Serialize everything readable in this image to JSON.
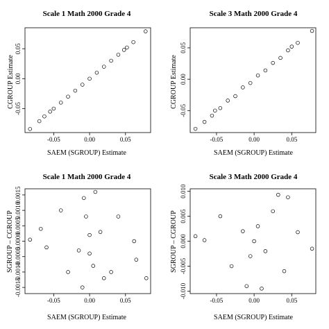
{
  "chart_data": [
    {
      "type": "scatter",
      "title": "Scale 1 Math 2000 Grade 4",
      "xlabel": "SAEM (SGROUP) Estimate",
      "ylabel": "CGROUP Estimate",
      "xlim": [
        -0.09,
        0.085
      ],
      "ylim": [
        -0.09,
        0.085
      ],
      "xticks": [
        -0.05,
        0.0,
        0.05
      ],
      "xtick_labels": [
        "-0.05",
        "0.00",
        "0.05"
      ],
      "yticks": [
        -0.05,
        0.0,
        0.05
      ],
      "ytick_labels": [
        "-0.05",
        "0.00",
        "0.05"
      ],
      "points": [
        [
          -0.083,
          -0.084
        ],
        [
          -0.07,
          -0.071
        ],
        [
          -0.063,
          -0.063
        ],
        [
          -0.055,
          -0.055
        ],
        [
          0.052,
          0.052
        ],
        [
          0.061,
          0.061
        ],
        [
          0.078,
          0.079
        ],
        [
          -0.05,
          -0.05
        ],
        [
          -0.04,
          -0.04
        ],
        [
          -0.03,
          -0.03
        ],
        [
          -0.02,
          -0.02
        ],
        [
          -0.01,
          -0.01
        ],
        [
          0.0,
          0.0
        ],
        [
          0.01,
          0.01
        ],
        [
          0.02,
          0.02
        ],
        [
          0.03,
          0.03
        ],
        [
          0.04,
          0.04
        ],
        [
          0.048,
          0.048
        ]
      ],
      "grid": false,
      "legend": "none"
    },
    {
      "type": "scatter",
      "title": "Scale 3 Math 2000 Grade 4",
      "xlabel": "SAEM (SGROUP) Estimate",
      "ylabel": "CGROUP Estimate",
      "xlim": [
        -0.085,
        0.082
      ],
      "ylim": [
        -0.085,
        0.082
      ],
      "xticks": [
        -0.05,
        0.0,
        0.05
      ],
      "xtick_labels": [
        "-0.05",
        "0.00",
        "0.05"
      ],
      "yticks": [
        -0.05,
        0.0,
        0.05
      ],
      "ytick_labels": [
        "-0.05",
        "0.00",
        "0.05"
      ],
      "points": [
        [
          -0.078,
          -0.079
        ],
        [
          -0.066,
          -0.068
        ],
        [
          -0.056,
          -0.058
        ],
        [
          -0.052,
          -0.05
        ],
        [
          0.058,
          0.058
        ],
        [
          0.077,
          0.077
        ],
        [
          -0.045,
          -0.046
        ],
        [
          -0.035,
          -0.034
        ],
        [
          -0.025,
          -0.027
        ],
        [
          -0.015,
          -0.013
        ],
        [
          -0.005,
          -0.006
        ],
        [
          0.005,
          0.006
        ],
        [
          0.015,
          0.014
        ],
        [
          0.025,
          0.026
        ],
        [
          0.035,
          0.034
        ],
        [
          0.045,
          0.046
        ],
        [
          0.05,
          0.052
        ]
      ],
      "grid": false,
      "legend": "none"
    },
    {
      "type": "scatter",
      "title": "Scale 1 Math 2000 Grade 4",
      "xlabel": "SAEM (SGROUP) Estimate",
      "ylabel": "SGROUP – CGROUP",
      "xlim": [
        -0.09,
        0.085
      ],
      "ylim": [
        -0.0017,
        0.0017
      ],
      "xticks": [
        -0.05,
        0.0,
        0.05
      ],
      "xtick_labels": [
        "-0.05",
        "0.00",
        "0.05"
      ],
      "yticks": [
        -0.0015,
        -0.001,
        -0.0005,
        0.0,
        0.0005,
        0.001,
        0.0015
      ],
      "ytick_labels": [
        "-0.0015",
        "-0.0010",
        "-0.0005",
        "0.0000",
        "0.0005",
        "0.0010",
        "0.0015"
      ],
      "points": [
        [
          -0.083,
          5e-05
        ],
        [
          -0.068,
          0.0004
        ],
        [
          -0.06,
          -0.0002
        ],
        [
          0.008,
          0.0016
        ],
        [
          -0.008,
          0.0014
        ],
        [
          0.062,
          0.0
        ],
        [
          0.065,
          -0.0006
        ],
        [
          0.079,
          -0.0012
        ],
        [
          -0.01,
          -0.0015
        ],
        [
          0.02,
          -0.0012
        ],
        [
          -0.04,
          0.001
        ],
        [
          0.04,
          0.0008
        ],
        [
          -0.03,
          -0.001
        ],
        [
          0.03,
          -0.001
        ],
        [
          0.0,
          -0.0004
        ],
        [
          0.0,
          0.0002
        ],
        [
          -0.015,
          -0.0003
        ],
        [
          0.015,
          0.0003
        ],
        [
          -0.005,
          0.0008
        ],
        [
          0.005,
          -0.0008
        ]
      ],
      "grid": false,
      "legend": "none"
    },
    {
      "type": "scatter",
      "title": "Scale 3 Math 2000 Grade 4",
      "xlabel": "SAEM (SGROUP) Estimate",
      "ylabel": "SGROUP – CGROUP",
      "xlim": [
        -0.085,
        0.082
      ],
      "ylim": [
        -0.0105,
        0.0105
      ],
      "xticks": [
        -0.05,
        0.0,
        0.05
      ],
      "xtick_labels": [
        "-0.05",
        "0.00",
        "0.05"
      ],
      "yticks": [
        -0.01,
        -0.005,
        0.0,
        0.005,
        0.01
      ],
      "ytick_labels": [
        "-0.010",
        "-0.005",
        "0.000",
        "0.005",
        "0.010"
      ],
      "points": [
        [
          -0.078,
          0.001
        ],
        [
          -0.066,
          0.0002
        ],
        [
          0.077,
          -0.0015
        ],
        [
          0.058,
          0.0018
        ],
        [
          0.045,
          0.0088
        ],
        [
          0.032,
          0.0093
        ],
        [
          -0.01,
          -0.009
        ],
        [
          0.01,
          -0.0095
        ],
        [
          -0.045,
          0.005
        ],
        [
          0.04,
          -0.006
        ],
        [
          -0.03,
          -0.005
        ],
        [
          0.025,
          0.006
        ],
        [
          0.0,
          0.0
        ],
        [
          -0.015,
          0.002
        ],
        [
          0.015,
          -0.002
        ],
        [
          -0.005,
          -0.003
        ],
        [
          0.005,
          0.003
        ]
      ],
      "grid": false,
      "legend": "none"
    }
  ]
}
